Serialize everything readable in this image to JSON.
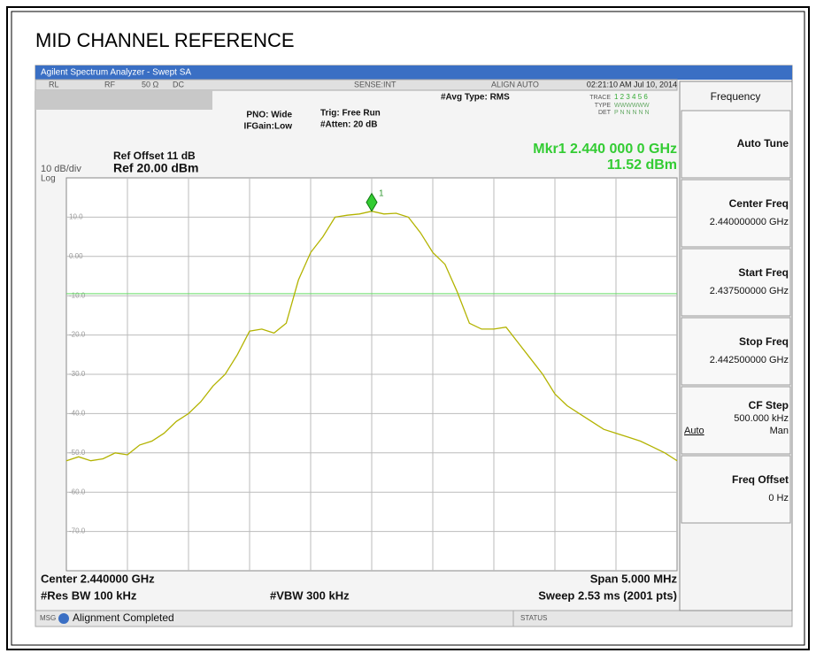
{
  "title": "MID CHANNEL REFERENCE",
  "window_title": "Agilent Spectrum Analyzer - Swept SA",
  "status_bar": {
    "rl": "RL",
    "rf": "RF",
    "imp": "50 Ω",
    "dc": "DC",
    "sense": "SENSE:INT",
    "align": "ALIGN AUTO",
    "time": "02:21:10 AM Jul 10, 2014"
  },
  "settings": {
    "pno": "PNO: Wide",
    "ifgain": "IFGain:Low",
    "trig": "Trig: Free Run",
    "atten": "#Atten: 20 dB",
    "avg": "#Avg Type: RMS",
    "trace_label": "TRACE",
    "trace_nums": "1 2 3 4 5 6",
    "type_label": "TYPE",
    "type_val": "WWWWWW",
    "det_label": "DET",
    "det_val": "P N N N N N"
  },
  "ref_offset": "Ref Offset 11 dB",
  "ref_level": "Ref 20.00 dBm",
  "scale": "10 dB/div",
  "scale_type": "Log",
  "marker_readout": {
    "freq": "Mkr1 2.440 000 0 GHz",
    "level": "11.52 dBm"
  },
  "footer": {
    "center": "Center 2.440000 GHz",
    "rbw": "#Res BW 100 kHz",
    "vbw": "#VBW 300 kHz",
    "span": "Span 5.000 MHz",
    "sweep": "Sweep  2.53 ms (2001 pts)"
  },
  "message": {
    "msg": "MSG",
    "text": "Alignment Completed",
    "status": "STATUS"
  },
  "softkeys": {
    "menu": "Frequency",
    "keys": [
      {
        "label": "Auto Tune"
      },
      {
        "label": "Center Freq",
        "value": "2.440000000 GHz"
      },
      {
        "label": "Start Freq",
        "value": "2.437500000 GHz"
      },
      {
        "label": "Stop Freq",
        "value": "2.442500000 GHz"
      },
      {
        "label": "CF Step",
        "value": "500.000 kHz",
        "options": [
          "Auto",
          "Man"
        ]
      },
      {
        "label": "Freq Offset",
        "value": "0 Hz"
      }
    ]
  },
  "chart_data": {
    "type": "line",
    "xlim": [
      2.4375,
      2.4425
    ],
    "ylim": [
      -80,
      20
    ],
    "yticks": [
      {
        "value": 10,
        "label": "10.0"
      },
      {
        "value": 0,
        "label": "0.00"
      },
      {
        "value": -10,
        "label": "-10.0"
      },
      {
        "value": -20,
        "label": "-20.0"
      },
      {
        "value": -30,
        "label": "-30.0"
      },
      {
        "value": -40,
        "label": "-40.0"
      },
      {
        "value": -50,
        "label": "-50.0"
      },
      {
        "value": -60,
        "label": "-60.0"
      },
      {
        "value": -70,
        "label": "-70.0"
      }
    ],
    "grid": true,
    "color": "#b3b300",
    "x": [
      2.4375,
      2.4376,
      2.4377,
      2.4378,
      2.4379,
      2.438,
      2.4381,
      2.4382,
      2.4383,
      2.4384,
      2.4385,
      2.4386,
      2.4387,
      2.4388,
      2.4389,
      2.439,
      2.4391,
      2.4392,
      2.4393,
      2.4394,
      2.4395,
      2.4396,
      2.4397,
      2.4398,
      2.4399,
      2.44,
      2.4401,
      2.4402,
      2.4403,
      2.4404,
      2.4405,
      2.4406,
      2.4407,
      2.4408,
      2.4409,
      2.441,
      2.4411,
      2.4412,
      2.4413,
      2.4414,
      2.4415,
      2.4416,
      2.4417,
      2.4418,
      2.4419,
      2.442,
      2.4421,
      2.4422,
      2.4423,
      2.4424,
      2.4425
    ],
    "values": [
      -52,
      -51,
      -52,
      -51.5,
      -50,
      -50.5,
      -48,
      -47,
      -45,
      -42,
      -40,
      -37,
      -33,
      -30,
      -25,
      -19,
      -18.5,
      -19.5,
      -17,
      -6,
      1,
      5,
      10,
      10.5,
      10.8,
      11.52,
      10.8,
      11,
      10,
      6,
      1,
      -2,
      -9,
      -17,
      -18.5,
      -18.5,
      -18,
      -22,
      -26,
      -30,
      -35,
      -38,
      -40,
      -42,
      -44,
      -45,
      -46,
      -47,
      -48.5,
      -50,
      -52
    ],
    "marker": {
      "name": "1",
      "x": 2.44,
      "value": 11.52
    },
    "display_line": -9.48
  }
}
